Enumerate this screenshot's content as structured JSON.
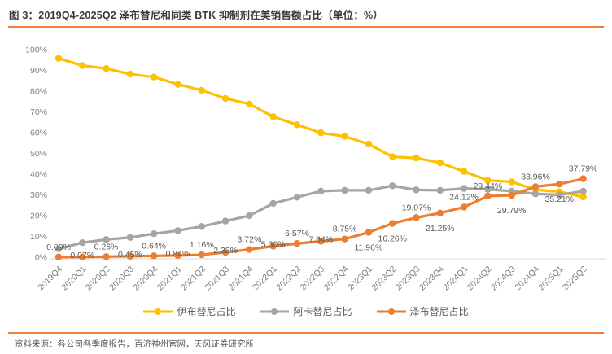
{
  "header": {
    "title": "图 3：2019Q4-2025Q2 泽布替尼和同类 BTK 抑制剂在美销售额占比（单位：%）"
  },
  "colors": {
    "ibrutinib": "#FFC000",
    "acalabrutinib": "#A5A5A5",
    "zanubrutinib": "#ED7D31",
    "divider": "#ED7D31",
    "axis_text": "#808080",
    "data_label_text": "#595959",
    "axis_line": "#D9D9D9"
  },
  "chart_data": {
    "type": "line",
    "title": "2019Q4-2025Q2 泽布替尼和同类 BTK 抑制剂在美销售额占比",
    "unit": "%",
    "xlabel": "",
    "ylabel": "",
    "ylim": [
      0,
      100
    ],
    "grid": false,
    "legend_position": "bottom",
    "y_ticks": [
      "0%",
      "10%",
      "20%",
      "30%",
      "40%",
      "50%",
      "60%",
      "70%",
      "80%",
      "90%",
      "100%"
    ],
    "categories": [
      "2019Q4",
      "2020Q1",
      "2020Q2",
      "2020Q3",
      "2020Q4",
      "2021Q1",
      "2021Q2",
      "2021Q3",
      "2021Q4",
      "2022Q1",
      "2022Q2",
      "2022Q3",
      "2022Q4",
      "2023Q1",
      "2023Q2",
      "2023Q3",
      "2023Q4",
      "2024Q1",
      "2024Q2",
      "2024Q3",
      "2024Q4",
      "2025Q1",
      "2025Q2"
    ],
    "series": [
      {
        "key": "ibrutinib",
        "name": "伊布替尼占比",
        "values": [
          95.8,
          92.3,
          90.9,
          88.2,
          86.8,
          83.3,
          80.4,
          76.5,
          73.8,
          67.7,
          63.8,
          59.9,
          58.2,
          54.5,
          48.4,
          47.8,
          45.5,
          41.3,
          37.0,
          36.3,
          32.5,
          31.5,
          29.0
        ],
        "values_note": "estimated from pixels (no labels shown)"
      },
      {
        "key": "acalabrutinib",
        "name": "阿卡替尼占比",
        "values": [
          4.0,
          7.0,
          8.5,
          9.5,
          11.3,
          12.8,
          14.8,
          17.4,
          20.0,
          25.9,
          28.9,
          31.8,
          32.2,
          32.2,
          34.4,
          32.4,
          32.2,
          33.1,
          32.7,
          31.8,
          30.5,
          30.0,
          31.8
        ],
        "values_note": "estimated from pixels (no labels shown)"
      },
      {
        "key": "zanubrutinib",
        "name": "泽布替尼占比",
        "values": [
          0.09,
          0.07,
          0.26,
          0.45,
          0.64,
          0.84,
          1.16,
          2.32,
          3.72,
          5.3,
          6.57,
          7.64,
          8.75,
          11.96,
          16.26,
          19.07,
          21.25,
          24.12,
          29.44,
          29.79,
          33.96,
          35.21,
          37.79
        ],
        "labels": [
          "0.09%",
          "0.07%",
          "0.26%",
          "0.45%",
          "0.64%",
          "0.84%",
          "1.16%",
          "2.32%",
          "3.72%",
          "5.30%",
          "6.57%",
          "7.64%",
          "8.75%",
          "11.96%",
          "16.26%",
          "19.07%",
          "21.25%",
          "24.12%",
          "29.44%",
          "29.79%",
          "33.96%",
          "35.21%",
          "37.79%"
        ],
        "label_pos": [
          "above",
          "snug",
          "above",
          "snug",
          "above",
          "snug",
          "above",
          "snug",
          "above",
          "snug",
          "above",
          "snug",
          "above",
          "below",
          "below",
          "above",
          "below",
          "above",
          "above",
          "below",
          "above",
          "below",
          "above"
        ]
      }
    ]
  },
  "footer": {
    "source": "资料来源：各公司各季度报告，百济神州官网，天风证券研究所"
  }
}
